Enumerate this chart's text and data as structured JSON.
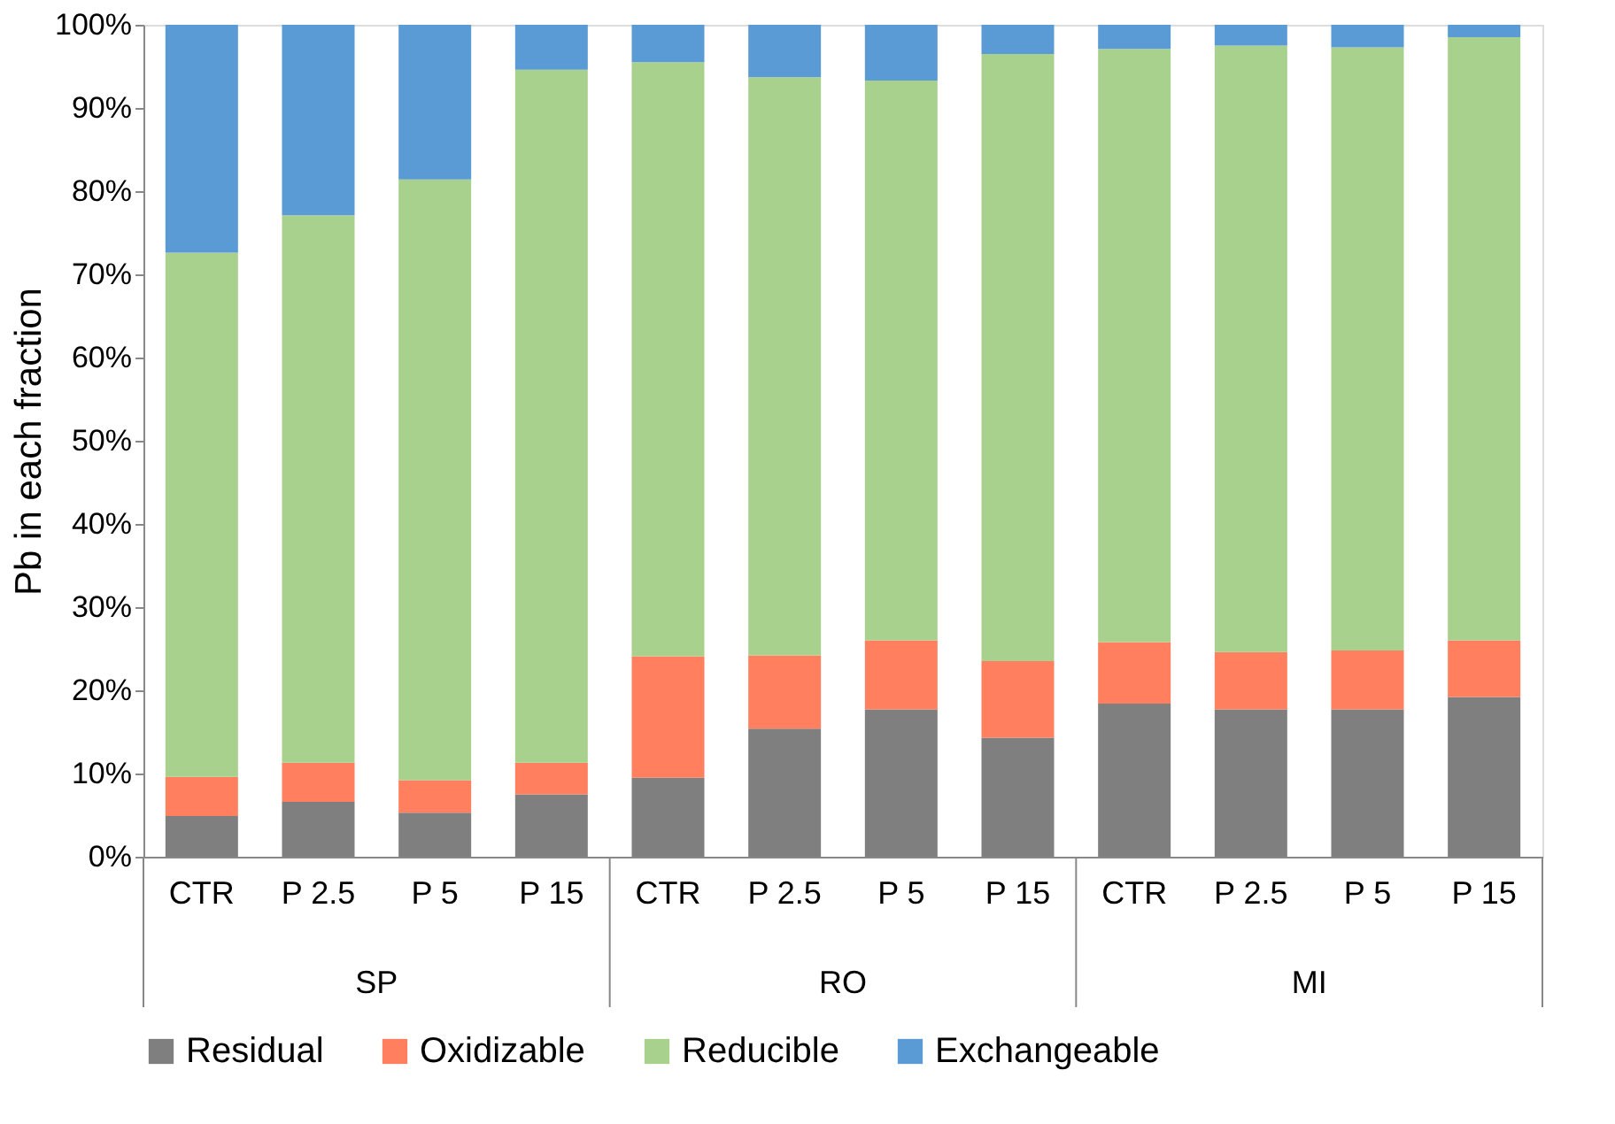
{
  "chart_data": {
    "type": "bar",
    "stacked": true,
    "ylabel": "Pb in each fraction",
    "categories": [
      "CTR",
      "P 2.5",
      "P 5",
      "P 15",
      "CTR",
      "P 2.5",
      "P 5",
      "P 15",
      "CTR",
      "P 2.5",
      "P 5",
      "P 15"
    ],
    "series": [
      {
        "name": "Residual",
        "color": "#7f7f7f",
        "values": [
          4.9,
          6.6,
          5.3,
          7.5,
          9.5,
          15.4,
          17.7,
          14.3,
          18.4,
          17.7,
          17.7,
          19.2
        ]
      },
      {
        "name": "Oxidizable",
        "color": "#ff7f5f",
        "values": [
          4.7,
          4.7,
          3.9,
          3.8,
          14.6,
          8.8,
          8.3,
          9.2,
          7.4,
          6.9,
          7.1,
          6.8
        ]
      },
      {
        "name": "Reducible",
        "color": "#a9d18e",
        "values": [
          63.0,
          65.8,
          72.2,
          83.3,
          71.4,
          69.5,
          67.3,
          73.0,
          71.3,
          72.9,
          72.5,
          72.5
        ]
      },
      {
        "name": "Exchangeable",
        "color": "#5b9bd5",
        "values": [
          27.4,
          22.9,
          18.6,
          5.4,
          4.5,
          6.3,
          6.7,
          3.5,
          2.9,
          2.5,
          2.7,
          1.5
        ]
      }
    ],
    "ylim": [
      0,
      100
    ],
    "yticks": [
      {
        "value": 0,
        "label": "0%"
      },
      {
        "value": 10,
        "label": "10%"
      },
      {
        "value": 20,
        "label": "20%"
      },
      {
        "value": 30,
        "label": "30%"
      },
      {
        "value": 40,
        "label": "40%"
      },
      {
        "value": 50,
        "label": "50%"
      },
      {
        "value": 60,
        "label": "60%"
      },
      {
        "value": 70,
        "label": "70%"
      },
      {
        "value": 80,
        "label": "80%"
      },
      {
        "value": 90,
        "label": "90%"
      },
      {
        "value": 100,
        "label": "100%"
      }
    ],
    "annotations": [
      "SP",
      "RO",
      "MI"
    ],
    "grid": false,
    "legend": "bottom"
  }
}
